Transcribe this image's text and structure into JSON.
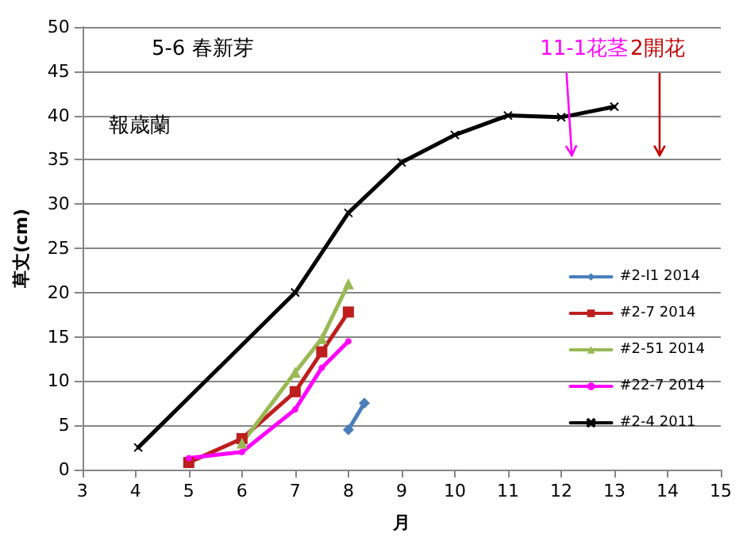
{
  "chart_data": {
    "type": "line",
    "xlabel": "月",
    "ylabel": "草丈(cm)",
    "annotations": [
      "5-6 春新芽",
      "11-1花茎",
      "2開花",
      "報歳蘭"
    ],
    "xlim": [
      3,
      15
    ],
    "xticks": [
      3,
      4,
      5,
      6,
      7,
      8,
      9,
      10,
      11,
      12,
      13,
      14,
      15
    ],
    "ylim": [
      0,
      50
    ],
    "yticks": [
      0,
      5,
      10,
      15,
      20,
      25,
      30,
      35,
      40,
      45,
      50
    ],
    "grid": "y",
    "legend": "right",
    "line_style": "solid",
    "series": [
      {
        "name": "#2-I1 2014",
        "color": "#4a7ebb",
        "marker": "diamond",
        "x": [
          8,
          8.3
        ],
        "values": [
          4.5,
          7.5
        ]
      },
      {
        "name": "#2-7 2014",
        "color": "#be1e1e",
        "marker": "square",
        "x": [
          5,
          6,
          7,
          7.5,
          8
        ],
        "values": [
          0.8,
          3.5,
          8.8,
          13.3,
          17.8
        ]
      },
      {
        "name": "#2-51 2014",
        "color": "#98b954",
        "marker": "triangle",
        "x": [
          6,
          7,
          7.5,
          8
        ],
        "values": [
          3,
          11,
          14.8,
          21
        ]
      },
      {
        "name": "#22-7 2014",
        "color": "#ff00ff",
        "marker": "circle",
        "x": [
          5,
          6,
          7,
          7.5,
          8
        ],
        "values": [
          1.3,
          2,
          6.8,
          11.5,
          14.5
        ]
      },
      {
        "name": "#2-4 2011",
        "color": "#000000",
        "marker": "cross",
        "x": [
          4.05,
          7,
          8,
          9,
          10,
          11,
          12,
          13
        ],
        "values": [
          2.5,
          20,
          29,
          34.7,
          37.8,
          40,
          39.8,
          41
        ]
      }
    ]
  }
}
